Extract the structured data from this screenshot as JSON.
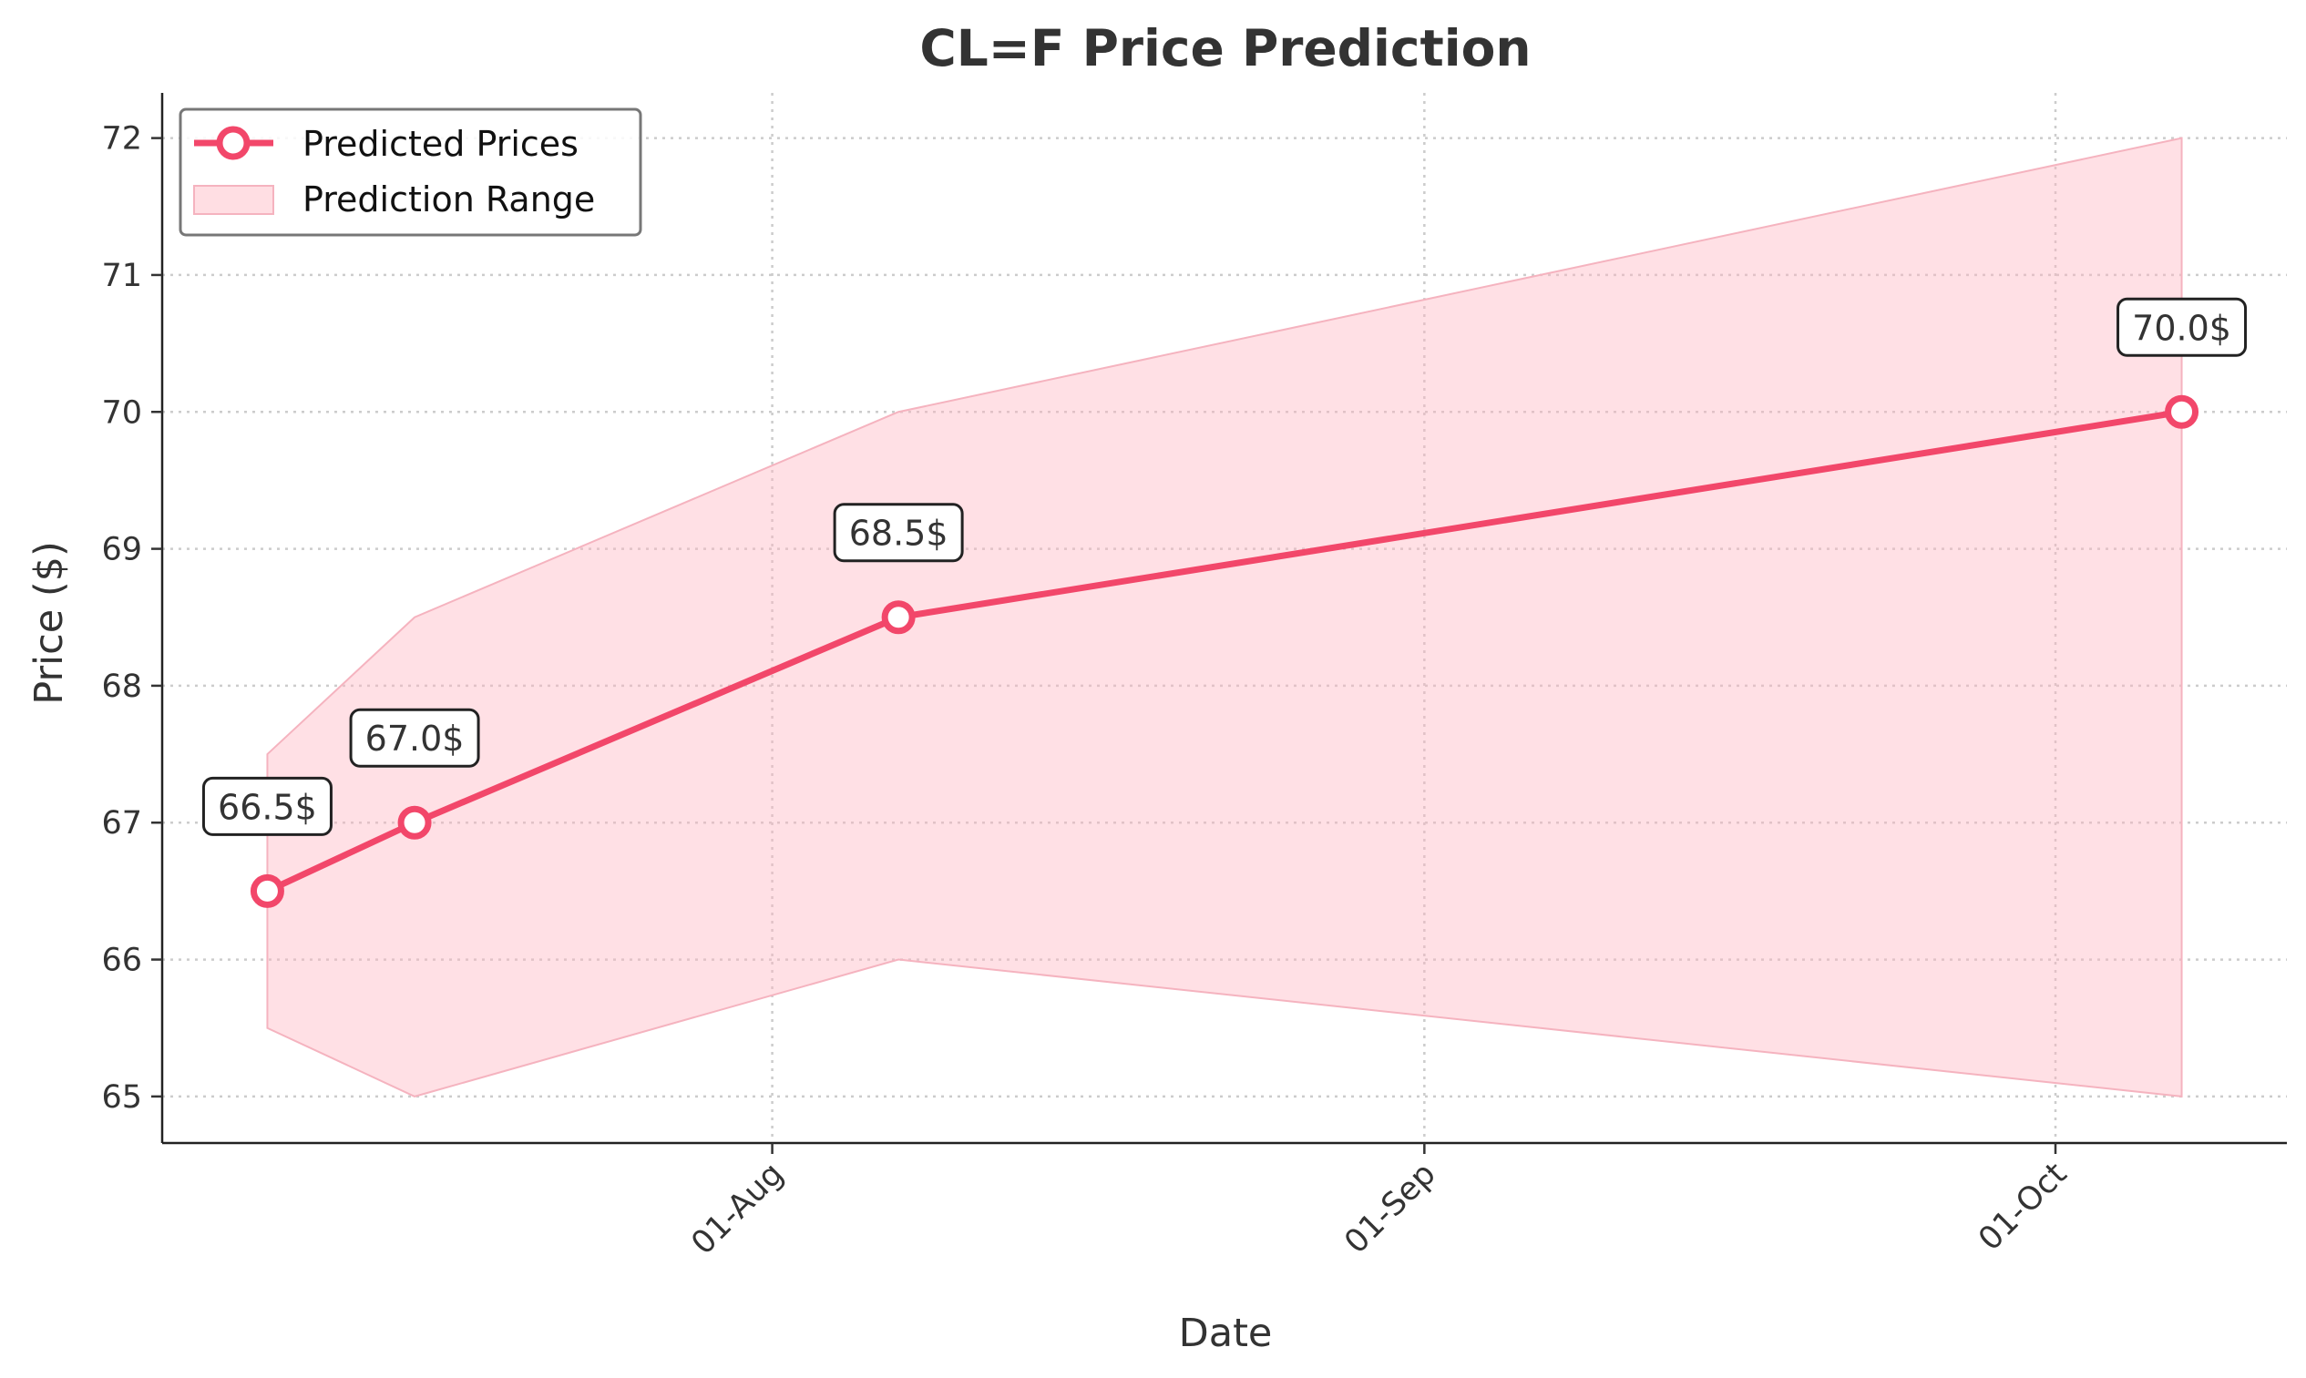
{
  "chart_data": {
    "type": "line",
    "title": "CL=F Price Prediction",
    "xlabel": "Date",
    "ylabel": "Price ($)",
    "x_ticks": [
      {
        "date": "2024-08-01",
        "label": "01-Aug"
      },
      {
        "date": "2024-09-01",
        "label": "01-Sep"
      },
      {
        "date": "2024-10-01",
        "label": "01-Oct"
      }
    ],
    "xlim": [
      "2024-07-03",
      "2024-10-12"
    ],
    "ylim": [
      64.66,
      72.33
    ],
    "y_ticks": [
      65,
      66,
      67,
      68,
      69,
      70,
      71,
      72
    ],
    "grid": true,
    "legend_position": "top-left",
    "series": [
      {
        "name": "Predicted Prices",
        "color": "#f2476a",
        "x": [
          "2024-07-08",
          "2024-07-15",
          "2024-08-07",
          "2024-10-07"
        ],
        "values": [
          66.5,
          67.0,
          68.5,
          70.0
        ],
        "annotations": [
          "66.5$",
          "67.0$",
          "68.5$",
          "70.0$"
        ]
      },
      {
        "name": "Prediction Range",
        "color": "#ffb6c1",
        "x": [
          "2024-07-08",
          "2024-07-15",
          "2024-08-07",
          "2024-10-07"
        ],
        "lower": [
          65.5,
          65.0,
          66.0,
          65.0
        ],
        "upper": [
          67.5,
          68.5,
          70.0,
          72.0
        ]
      }
    ]
  }
}
